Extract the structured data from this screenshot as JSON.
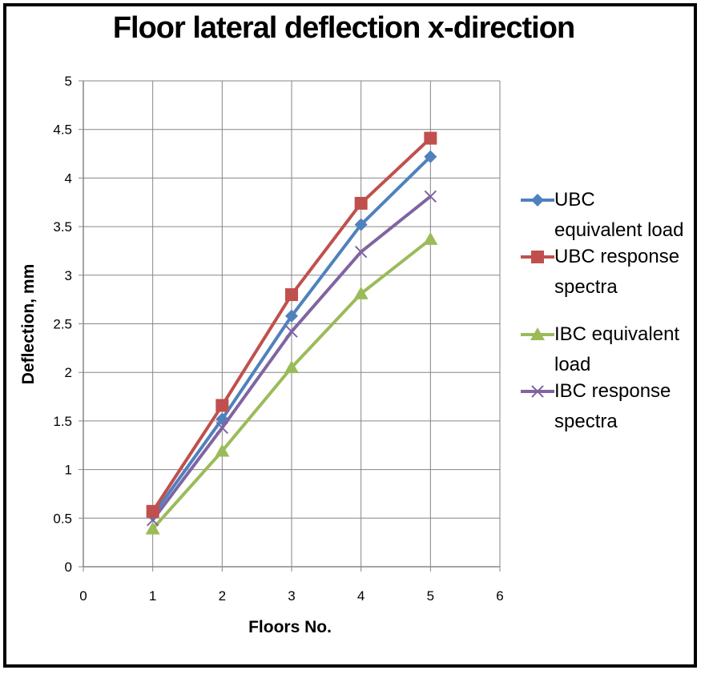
{
  "chart_data": {
    "type": "line",
    "title": "Floor lateral deflection x-direction",
    "xlabel": "Floors No.",
    "ylabel": "Deflection, mm",
    "xlim": [
      0,
      6
    ],
    "ylim": [
      0,
      5
    ],
    "x_ticks": [
      "0",
      "1",
      "2",
      "3",
      "4",
      "5",
      "6"
    ],
    "y_ticks": [
      "0",
      "0.5",
      "1",
      "1.5",
      "2",
      "2.5",
      "3",
      "3.5",
      "4",
      "4.5",
      "5"
    ],
    "grid": true,
    "legend_position": "right",
    "x": [
      1,
      2,
      3,
      4,
      5
    ],
    "series": [
      {
        "name": "UBC equivalent load",
        "marker": "diamond",
        "color": "#4f81bd",
        "values": [
          0.53,
          1.52,
          2.58,
          3.52,
          4.22
        ]
      },
      {
        "name": "UBC response spectra",
        "marker": "square",
        "color": "#c0504d",
        "values": [
          0.57,
          1.66,
          2.8,
          3.74,
          4.41
        ]
      },
      {
        "name": "IBC equivalent load",
        "marker": "triangle",
        "color": "#9bbb59",
        "values": [
          0.39,
          1.19,
          2.05,
          2.81,
          3.37
        ]
      },
      {
        "name": "IBC response spectra",
        "marker": "x",
        "color": "#8064a2",
        "values": [
          0.48,
          1.43,
          2.42,
          3.24,
          3.81
        ]
      }
    ]
  }
}
